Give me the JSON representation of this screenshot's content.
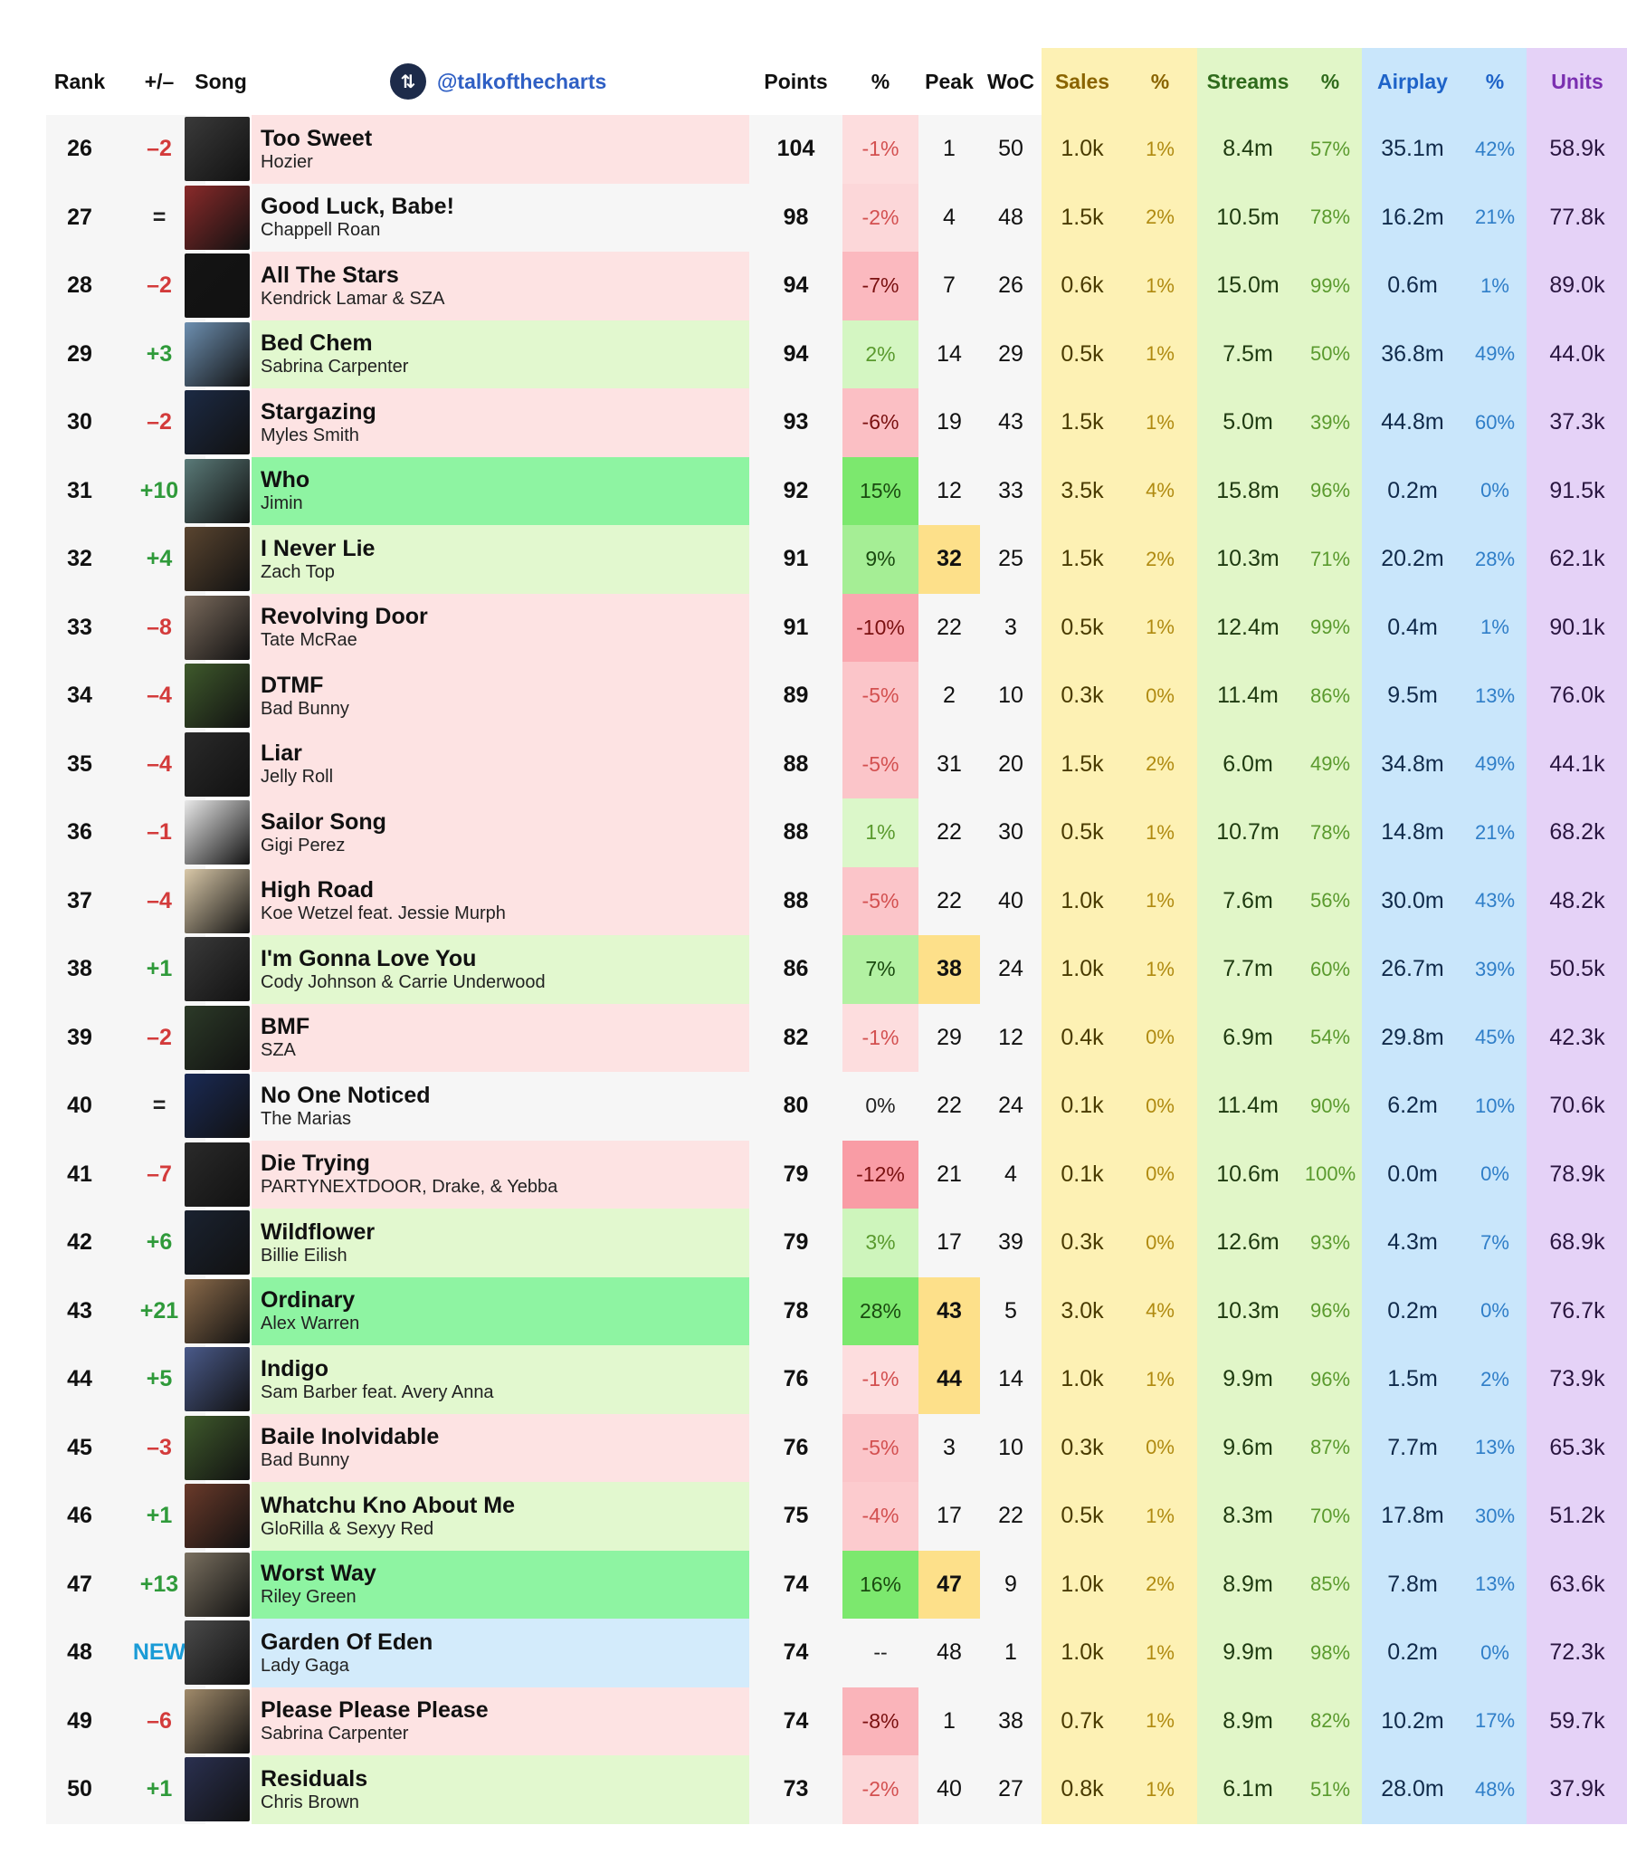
{
  "header": {
    "rank": "Rank",
    "change": "+/–",
    "song": "Song",
    "handle": "@talkofthecharts",
    "points": "Points",
    "points_pct": "%",
    "peak": "Peak",
    "woc": "WoC",
    "sales": "Sales",
    "sales_pct": "%",
    "streams": "Streams",
    "streams_pct": "%",
    "airplay": "Airplay",
    "airplay_pct": "%",
    "units": "Units"
  },
  "colors": {
    "song_up": "#e2f8cf",
    "song_down": "#fde3e3",
    "song_same": "#f6f6f6",
    "song_big_up": "#8ef4a2",
    "song_new": "#d3ebfb",
    "peak_highlight": "#fde08a"
  },
  "rows": [
    {
      "rank": "26",
      "change": "–2",
      "dir": "down",
      "title": "Too Sweet",
      "artist": "Hozier",
      "points": "104",
      "pct": "-1%",
      "pct_val": -1,
      "peak": "1",
      "woc": "50",
      "sales": "1.0k",
      "sales_pct": "1%",
      "streams": "8.4m",
      "streams_pct": "57%",
      "airplay": "35.1m",
      "airplay_pct": "42%",
      "units": "58.9k",
      "art": "#3a3a3a"
    },
    {
      "rank": "27",
      "change": "=",
      "dir": "same",
      "title": "Good Luck, Babe!",
      "artist": "Chappell Roan",
      "points": "98",
      "pct": "-2%",
      "pct_val": -2,
      "peak": "4",
      "woc": "48",
      "sales": "1.5k",
      "sales_pct": "2%",
      "streams": "10.5m",
      "streams_pct": "78%",
      "airplay": "16.2m",
      "airplay_pct": "21%",
      "units": "77.8k",
      "art": "#8a2a2a"
    },
    {
      "rank": "28",
      "change": "–2",
      "dir": "down",
      "title": "All The Stars",
      "artist": "Kendrick Lamar & SZA",
      "points": "94",
      "pct": "-7%",
      "pct_val": -7,
      "peak": "7",
      "woc": "26",
      "sales": "0.6k",
      "sales_pct": "1%",
      "streams": "15.0m",
      "streams_pct": "99%",
      "airplay": "0.6m",
      "airplay_pct": "1%",
      "units": "89.0k",
      "art": "#141414"
    },
    {
      "rank": "29",
      "change": "+3",
      "dir": "up",
      "title": "Bed Chem",
      "artist": "Sabrina Carpenter",
      "points": "94",
      "pct": "2%",
      "pct_val": 2,
      "peak": "14",
      "woc": "29",
      "sales": "0.5k",
      "sales_pct": "1%",
      "streams": "7.5m",
      "streams_pct": "50%",
      "airplay": "36.8m",
      "airplay_pct": "49%",
      "units": "44.0k",
      "art": "#6d8fb0"
    },
    {
      "rank": "30",
      "change": "–2",
      "dir": "down",
      "title": "Stargazing",
      "artist": "Myles Smith",
      "points": "93",
      "pct": "-6%",
      "pct_val": -6,
      "peak": "19",
      "woc": "43",
      "sales": "1.5k",
      "sales_pct": "1%",
      "streams": "5.0m",
      "streams_pct": "39%",
      "airplay": "44.8m",
      "airplay_pct": "60%",
      "units": "37.3k",
      "art": "#1c2a44"
    },
    {
      "rank": "31",
      "change": "+10",
      "dir": "bigup",
      "title": "Who",
      "artist": "Jimin",
      "points": "92",
      "pct": "15%",
      "pct_val": 15,
      "peak": "12",
      "woc": "33",
      "sales": "3.5k",
      "sales_pct": "4%",
      "streams": "15.8m",
      "streams_pct": "96%",
      "airplay": "0.2m",
      "airplay_pct": "0%",
      "units": "91.5k",
      "art": "#5a7a78"
    },
    {
      "rank": "32",
      "change": "+4",
      "dir": "up",
      "title": "I Never Lie",
      "artist": "Zach Top",
      "points": "91",
      "pct": "9%",
      "pct_val": 9,
      "peak": "32",
      "peak_hl": true,
      "woc": "25",
      "sales": "1.5k",
      "sales_pct": "2%",
      "streams": "10.3m",
      "streams_pct": "71%",
      "airplay": "20.2m",
      "airplay_pct": "28%",
      "units": "62.1k",
      "art": "#5a4530"
    },
    {
      "rank": "33",
      "change": "–8",
      "dir": "down",
      "title": "Revolving Door",
      "artist": "Tate McRae",
      "points": "91",
      "pct": "-10%",
      "pct_val": -10,
      "peak": "22",
      "woc": "3",
      "sales": "0.5k",
      "sales_pct": "1%",
      "streams": "12.4m",
      "streams_pct": "99%",
      "airplay": "0.4m",
      "airplay_pct": "1%",
      "units": "90.1k",
      "art": "#7a6a5c"
    },
    {
      "rank": "34",
      "change": "–4",
      "dir": "down",
      "title": "DTMF",
      "artist": "Bad Bunny",
      "points": "89",
      "pct": "-5%",
      "pct_val": -5,
      "peak": "2",
      "woc": "10",
      "sales": "0.3k",
      "sales_pct": "0%",
      "streams": "11.4m",
      "streams_pct": "86%",
      "airplay": "9.5m",
      "airplay_pct": "13%",
      "units": "76.0k",
      "art": "#3f5a2c"
    },
    {
      "rank": "35",
      "change": "–4",
      "dir": "down",
      "title": "Liar",
      "artist": "Jelly Roll",
      "points": "88",
      "pct": "-5%",
      "pct_val": -5,
      "peak": "31",
      "woc": "20",
      "sales": "1.5k",
      "sales_pct": "2%",
      "streams": "6.0m",
      "streams_pct": "49%",
      "airplay": "34.8m",
      "airplay_pct": "49%",
      "units": "44.1k",
      "art": "#2a2a2a"
    },
    {
      "rank": "36",
      "change": "–1",
      "dir": "down",
      "title": "Sailor Song",
      "artist": "Gigi Perez",
      "points": "88",
      "pct": "1%",
      "pct_val": 1,
      "peak": "22",
      "woc": "30",
      "sales": "0.5k",
      "sales_pct": "1%",
      "streams": "10.7m",
      "streams_pct": "78%",
      "airplay": "14.8m",
      "airplay_pct": "21%",
      "units": "68.2k",
      "art": "#e8e8e8"
    },
    {
      "rank": "37",
      "change": "–4",
      "dir": "down",
      "title": "High Road",
      "artist": "Koe Wetzel feat. Jessie Murph",
      "points": "88",
      "pct": "-5%",
      "pct_val": -5,
      "peak": "22",
      "woc": "40",
      "sales": "1.0k",
      "sales_pct": "1%",
      "streams": "7.6m",
      "streams_pct": "56%",
      "airplay": "30.0m",
      "airplay_pct": "43%",
      "units": "48.2k",
      "art": "#d9c8a8"
    },
    {
      "rank": "38",
      "change": "+1",
      "dir": "up",
      "title": "I'm Gonna Love You",
      "artist": "Cody Johnson & Carrie Underwood",
      "points": "86",
      "pct": "7%",
      "pct_val": 7,
      "peak": "38",
      "peak_hl": true,
      "woc": "24",
      "sales": "1.0k",
      "sales_pct": "1%",
      "streams": "7.7m",
      "streams_pct": "60%",
      "airplay": "26.7m",
      "airplay_pct": "39%",
      "units": "50.5k",
      "art": "#3a3a3a"
    },
    {
      "rank": "39",
      "change": "–2",
      "dir": "down",
      "title": "BMF",
      "artist": "SZA",
      "points": "82",
      "pct": "-1%",
      "pct_val": -1,
      "peak": "29",
      "woc": "12",
      "sales": "0.4k",
      "sales_pct": "0%",
      "streams": "6.9m",
      "streams_pct": "54%",
      "airplay": "29.8m",
      "airplay_pct": "45%",
      "units": "42.3k",
      "art": "#2c3a28"
    },
    {
      "rank": "40",
      "change": "=",
      "dir": "same",
      "title": "No One Noticed",
      "artist": "The Marias",
      "points": "80",
      "pct": "0%",
      "pct_val": 0,
      "peak": "22",
      "woc": "24",
      "sales": "0.1k",
      "sales_pct": "0%",
      "streams": "11.4m",
      "streams_pct": "90%",
      "airplay": "6.2m",
      "airplay_pct": "10%",
      "units": "70.6k",
      "art": "#1a2a55"
    },
    {
      "rank": "41",
      "change": "–7",
      "dir": "down",
      "title": "Die Trying",
      "artist": "PARTYNEXTDOOR, Drake, & Yebba",
      "points": "79",
      "pct": "-12%",
      "pct_val": -12,
      "peak": "21",
      "woc": "4",
      "sales": "0.1k",
      "sales_pct": "0%",
      "streams": "10.6m",
      "streams_pct": "100%",
      "airplay": "0.0m",
      "airplay_pct": "0%",
      "units": "78.9k",
      "art": "#2a2a2a"
    },
    {
      "rank": "42",
      "change": "+6",
      "dir": "up",
      "title": "Wildflower",
      "artist": "Billie Eilish",
      "points": "79",
      "pct": "3%",
      "pct_val": 3,
      "peak": "17",
      "woc": "39",
      "sales": "0.3k",
      "sales_pct": "0%",
      "streams": "12.6m",
      "streams_pct": "93%",
      "airplay": "4.3m",
      "airplay_pct": "7%",
      "units": "68.9k",
      "art": "#1a2230"
    },
    {
      "rank": "43",
      "change": "+21",
      "dir": "bigup",
      "title": "Ordinary",
      "artist": "Alex Warren",
      "points": "78",
      "pct": "28%",
      "pct_val": 28,
      "peak": "43",
      "peak_hl": true,
      "woc": "5",
      "sales": "3.0k",
      "sales_pct": "4%",
      "streams": "10.3m",
      "streams_pct": "96%",
      "airplay": "0.2m",
      "airplay_pct": "0%",
      "units": "76.7k",
      "art": "#8a6a4a"
    },
    {
      "rank": "44",
      "change": "+5",
      "dir": "up",
      "title": "Indigo",
      "artist": "Sam Barber feat. Avery Anna",
      "points": "76",
      "pct": "-1%",
      "pct_val": -1,
      "peak": "44",
      "peak_hl": true,
      "woc": "14",
      "sales": "1.0k",
      "sales_pct": "1%",
      "streams": "9.9m",
      "streams_pct": "96%",
      "airplay": "1.5m",
      "airplay_pct": "2%",
      "units": "73.9k",
      "art": "#4a5a8a"
    },
    {
      "rank": "45",
      "change": "–3",
      "dir": "down",
      "title": "Baile Inolvidable",
      "artist": "Bad Bunny",
      "points": "76",
      "pct": "-5%",
      "pct_val": -5,
      "peak": "3",
      "woc": "10",
      "sales": "0.3k",
      "sales_pct": "0%",
      "streams": "9.6m",
      "streams_pct": "87%",
      "airplay": "7.7m",
      "airplay_pct": "13%",
      "units": "65.3k",
      "art": "#3f5a2c"
    },
    {
      "rank": "46",
      "change": "+1",
      "dir": "up",
      "title": "Whatchu Kno About Me",
      "artist": "GloRilla & Sexyy Red",
      "points": "75",
      "pct": "-4%",
      "pct_val": -4,
      "peak": "17",
      "woc": "22",
      "sales": "0.5k",
      "sales_pct": "1%",
      "streams": "8.3m",
      "streams_pct": "70%",
      "airplay": "17.8m",
      "airplay_pct": "30%",
      "units": "51.2k",
      "art": "#6a3a2a"
    },
    {
      "rank": "47",
      "change": "+13",
      "dir": "bigup",
      "title": "Worst Way",
      "artist": "Riley Green",
      "points": "74",
      "pct": "16%",
      "pct_val": 16,
      "peak": "47",
      "peak_hl": true,
      "woc": "9",
      "sales": "1.0k",
      "sales_pct": "2%",
      "streams": "8.9m",
      "streams_pct": "85%",
      "airplay": "7.8m",
      "airplay_pct": "13%",
      "units": "63.6k",
      "art": "#7a7060"
    },
    {
      "rank": "48",
      "change": "NEW",
      "dir": "new",
      "title": "Garden Of Eden",
      "artist": "Lady Gaga",
      "points": "74",
      "pct": "--",
      "pct_val": null,
      "peak": "48",
      "woc": "1",
      "sales": "1.0k",
      "sales_pct": "1%",
      "streams": "9.9m",
      "streams_pct": "98%",
      "airplay": "0.2m",
      "airplay_pct": "0%",
      "units": "72.3k",
      "art": "#4a4a4a"
    },
    {
      "rank": "49",
      "change": "–6",
      "dir": "down",
      "title": "Please Please Please",
      "artist": "Sabrina Carpenter",
      "points": "74",
      "pct": "-8%",
      "pct_val": -8,
      "peak": "1",
      "woc": "38",
      "sales": "0.7k",
      "sales_pct": "1%",
      "streams": "8.9m",
      "streams_pct": "82%",
      "airplay": "10.2m",
      "airplay_pct": "17%",
      "units": "59.7k",
      "art": "#a08a6a"
    },
    {
      "rank": "50",
      "change": "+1",
      "dir": "up",
      "title": "Residuals",
      "artist": "Chris Brown",
      "points": "73",
      "pct": "-2%",
      "pct_val": -2,
      "peak": "40",
      "woc": "27",
      "sales": "0.8k",
      "sales_pct": "1%",
      "streams": "6.1m",
      "streams_pct": "51%",
      "airplay": "28.0m",
      "airplay_pct": "48%",
      "units": "37.9k",
      "art": "#2a3050"
    }
  ]
}
